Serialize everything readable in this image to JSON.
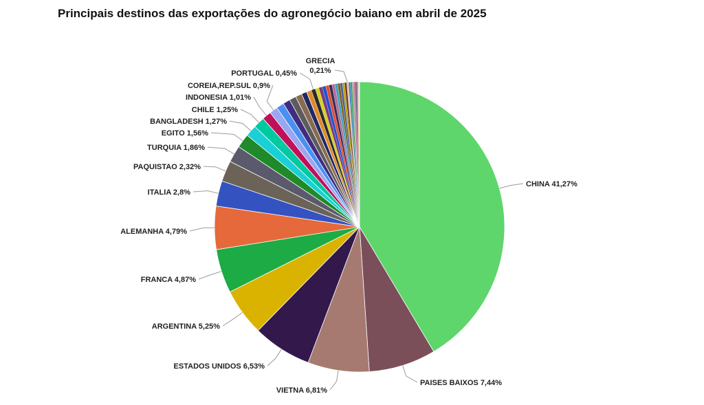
{
  "chart_data": {
    "type": "pie",
    "title": "Principais destinos das exportações do agronegócio baiano em abril de 2025",
    "slices": [
      {
        "name": "CHINA",
        "value": 41.27,
        "label": "CHINA 41,27%",
        "color": "#5ed66c"
      },
      {
        "name": "PAISES BAIXOS",
        "value": 7.44,
        "label": "PAISES BAIXOS 7,44%",
        "color": "#7b4f5a"
      },
      {
        "name": "VIETNA",
        "value": 6.81,
        "label": "VIETNA 6,81%",
        "color": "#a67a70"
      },
      {
        "name": "ESTADOS UNIDOS",
        "value": 6.53,
        "label": "ESTADOS UNIDOS 6,53%",
        "color": "#33184c"
      },
      {
        "name": "ARGENTINA",
        "value": 5.25,
        "label": "ARGENTINA 5,25%",
        "color": "#dab300"
      },
      {
        "name": "FRANCA",
        "value": 4.87,
        "label": "FRANCA 4,87%",
        "color": "#1cab44"
      },
      {
        "name": "ALEMANHA",
        "value": 4.79,
        "label": "ALEMANHA 4,79%",
        "color": "#e5693a"
      },
      {
        "name": "ITALIA",
        "value": 2.8,
        "label": "ITALIA 2,8%",
        "color": "#3453c0"
      },
      {
        "name": "PAQUISTAO",
        "value": 2.32,
        "label": "PAQUISTAO 2,32%",
        "color": "#6b6258"
      },
      {
        "name": "TURQUIA",
        "value": 1.86,
        "label": "TURQUIA 1,86%",
        "color": "#5a5a6c"
      },
      {
        "name": "EGITO",
        "value": 1.56,
        "label": "EGITO 1,56%",
        "color": "#1f8a2a"
      },
      {
        "name": "BANGLADESH",
        "value": 1.27,
        "label": "BANGLADESH 1,27%",
        "color": "#1ad0d6"
      },
      {
        "name": "CHILE",
        "value": 1.25,
        "label": "CHILE 1,25%",
        "color": "#00c8a0"
      },
      {
        "name": "INDONESIA",
        "value": 1.01,
        "label": "INDONESIA 1,01%",
        "color": "#c0105a"
      },
      {
        "name": "COREIA,REP.SUL",
        "value": 0.9,
        "label": "COREIA,REP.SUL 0,9%",
        "color": "#9aa6f0"
      },
      {
        "name": "",
        "value": 0.85,
        "label": "",
        "color": "#4a90f0"
      },
      {
        "name": "",
        "value": 0.8,
        "label": "",
        "color": "#402d80"
      },
      {
        "name": "",
        "value": 0.75,
        "label": "",
        "color": "#5c5c5c"
      },
      {
        "name": "",
        "value": 0.7,
        "label": "",
        "color": "#8a6a50"
      },
      {
        "name": "",
        "value": 0.6,
        "label": "",
        "color": "#1f2a60"
      },
      {
        "name": "",
        "value": 0.55,
        "label": "",
        "color": "#e08a2a"
      },
      {
        "name": "PORTUGAL",
        "value": 0.45,
        "label": "PORTUGAL 0,45%",
        "color": "#2a2a2a"
      },
      {
        "name": "",
        "value": 0.4,
        "label": "",
        "color": "#d8d020"
      },
      {
        "name": "",
        "value": 0.4,
        "label": "",
        "color": "#7a3a7a"
      },
      {
        "name": "",
        "value": 0.38,
        "label": "",
        "color": "#2050d0"
      },
      {
        "name": "",
        "value": 0.36,
        "label": "",
        "color": "#e05030"
      },
      {
        "name": "",
        "value": 0.34,
        "label": "",
        "color": "#3a2a5a"
      },
      {
        "name": "",
        "value": 0.32,
        "label": "",
        "color": "#b07090"
      },
      {
        "name": "",
        "value": 0.3,
        "label": "",
        "color": "#40a0c0"
      },
      {
        "name": "",
        "value": 0.28,
        "label": "",
        "color": "#806020"
      },
      {
        "name": "",
        "value": 0.26,
        "label": "",
        "color": "#4060a0"
      },
      {
        "name": "",
        "value": 0.24,
        "label": "",
        "color": "#c0a000"
      },
      {
        "name": "",
        "value": 0.22,
        "label": "",
        "color": "#603030"
      },
      {
        "name": "GRECIA",
        "value": 0.21,
        "label": "GRECIA 0,21%",
        "color": "#e0c0a0"
      },
      {
        "name": "",
        "value": 0.2,
        "label": "",
        "color": "#3080c0"
      },
      {
        "name": "",
        "value": 0.19,
        "label": "",
        "color": "#30a050"
      },
      {
        "name": "",
        "value": 0.18,
        "label": "",
        "color": "#a0a0a0"
      },
      {
        "name": "",
        "value": 0.17,
        "label": "",
        "color": "#d06080"
      },
      {
        "name": "",
        "value": 0.16,
        "label": "",
        "color": "#505080"
      },
      {
        "name": "",
        "value": 0.16,
        "label": "",
        "color": "#c08040"
      },
      {
        "name": "",
        "value": 0.15,
        "label": "",
        "color": "#e8e8e8"
      }
    ]
  }
}
